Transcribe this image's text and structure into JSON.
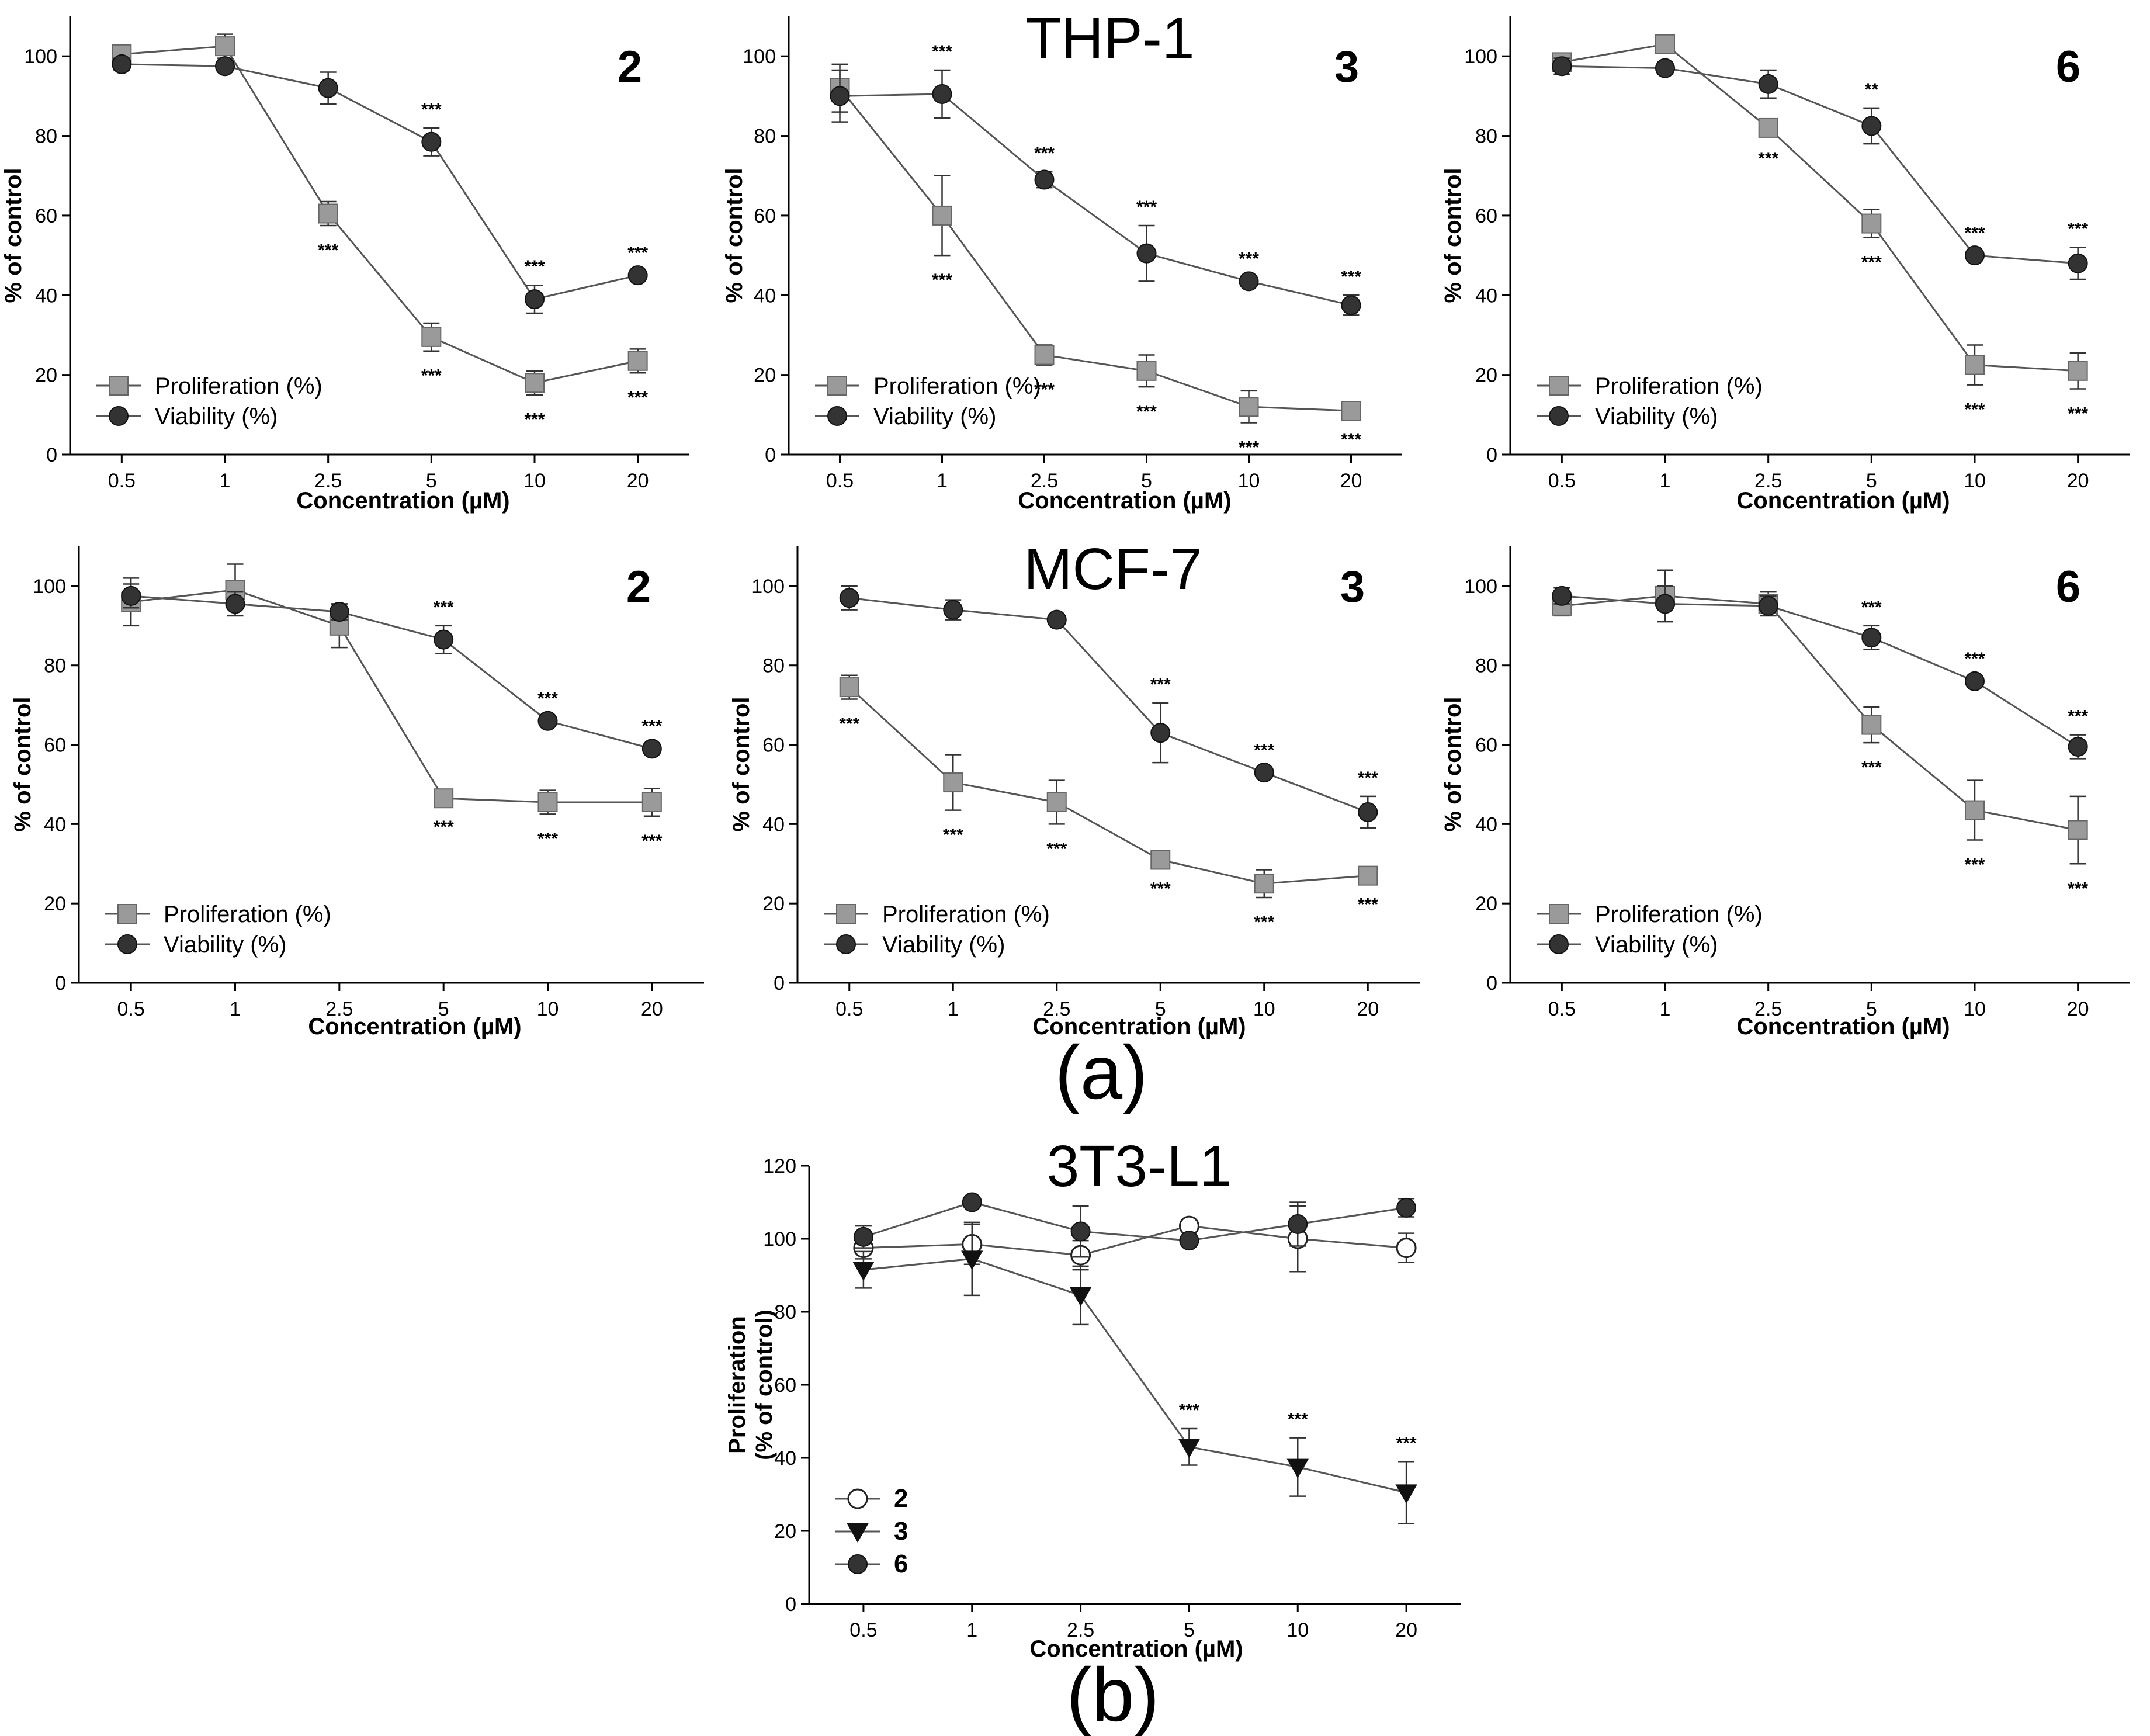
{
  "figure": {
    "cell_titles": [
      "THP-1",
      "MCF-7",
      "3T3-L1"
    ],
    "part_labels": [
      "(a)",
      "(b)"
    ]
  },
  "colors": {
    "proliferation_fill": "#9a9a9a",
    "viability_fill": "#333333",
    "line": "#555555",
    "axis": "#000000"
  },
  "chart_data": [
    {
      "id": "thp1-2",
      "cell_line": "THP-1",
      "compound": "2",
      "type": "line",
      "xlabel": "Concentration (µM)",
      "ylabel": "% of control",
      "categories": [
        "0.5",
        "1",
        "2.5",
        "5",
        "10",
        "20"
      ],
      "ylim": [
        0,
        110
      ],
      "yticks": [
        0,
        20,
        40,
        60,
        80,
        100
      ],
      "legend_position": "bottom-left",
      "series": [
        {
          "name": "Proliferation (%)",
          "marker": "square",
          "values": [
            100.5,
            102.5,
            60.5,
            29.5,
            18.0,
            23.5
          ],
          "errors": [
            1.5,
            3.0,
            3.0,
            3.5,
            3.0,
            3.0
          ],
          "significance": [
            "",
            "",
            "***",
            "***",
            "***",
            "***"
          ]
        },
        {
          "name": "Viability (%)",
          "marker": "circle",
          "values": [
            98.0,
            97.5,
            92.0,
            78.5,
            39.0,
            45.0
          ],
          "errors": [
            1.5,
            1.5,
            4.0,
            3.5,
            3.5,
            1.0
          ],
          "significance": [
            "",
            "",
            "",
            "***",
            "***",
            "***"
          ]
        }
      ]
    },
    {
      "id": "thp1-3",
      "cell_line": "THP-1",
      "compound": "3",
      "type": "line",
      "xlabel": "Concentration (µM)",
      "ylabel": "% of control",
      "categories": [
        "0.5",
        "1",
        "2.5",
        "5",
        "10",
        "20"
      ],
      "ylim": [
        0,
        110
      ],
      "yticks": [
        0,
        20,
        40,
        60,
        80,
        100
      ],
      "legend_position": "bottom-left",
      "series": [
        {
          "name": "Proliferation (%)",
          "marker": "square",
          "values": [
            92.0,
            60.0,
            25.0,
            21.0,
            12.0,
            11.0
          ],
          "errors": [
            6.0,
            10.0,
            2.5,
            4.0,
            4.0,
            1.0
          ],
          "significance": [
            "",
            "***",
            "***",
            "***",
            "***",
            "***"
          ]
        },
        {
          "name": "Viability (%)",
          "marker": "circle",
          "values": [
            90.0,
            90.5,
            69.0,
            50.5,
            43.5,
            37.5
          ],
          "errors": [
            6.5,
            6.0,
            2.0,
            7.0,
            1.0,
            2.5
          ],
          "significance": [
            "",
            "***",
            "***",
            "***",
            "***",
            "***"
          ]
        }
      ]
    },
    {
      "id": "thp1-6",
      "cell_line": "THP-1",
      "compound": "6",
      "type": "line",
      "xlabel": "Concentration (µM)",
      "ylabel": "% of control",
      "categories": [
        "0.5",
        "1",
        "2.5",
        "5",
        "10",
        "20"
      ],
      "ylim": [
        0,
        110
      ],
      "yticks": [
        0,
        20,
        40,
        60,
        80,
        100
      ],
      "legend_position": "bottom-left",
      "series": [
        {
          "name": "Proliferation (%)",
          "marker": "square",
          "values": [
            98.5,
            103.0,
            82.0,
            58.0,
            22.5,
            21.0
          ],
          "errors": [
            1.5,
            2.0,
            1.5,
            3.5,
            5.0,
            4.5
          ],
          "significance": [
            "",
            "",
            "***",
            "***",
            "***",
            "***"
          ]
        },
        {
          "name": "Viability (%)",
          "marker": "circle",
          "values": [
            97.5,
            97.0,
            93.0,
            82.5,
            50.0,
            48.0
          ],
          "errors": [
            2.0,
            1.5,
            3.5,
            4.5,
            1.0,
            4.0
          ],
          "significance": [
            "",
            "",
            "",
            "**",
            "***",
            "***"
          ]
        }
      ]
    },
    {
      "id": "mcf7-2",
      "cell_line": "MCF-7",
      "compound": "2",
      "type": "line",
      "xlabel": "Concentration (µM)",
      "ylabel": "% of control",
      "categories": [
        "0.5",
        "1",
        "2.5",
        "5",
        "10",
        "20"
      ],
      "ylim": [
        0,
        110
      ],
      "yticks": [
        0,
        20,
        40,
        60,
        80,
        100
      ],
      "legend_position": "bottom-left",
      "series": [
        {
          "name": "Proliferation (%)",
          "marker": "square",
          "values": [
            96.0,
            99.0,
            90.0,
            46.5,
            45.5,
            45.5
          ],
          "errors": [
            6.0,
            6.5,
            5.5,
            1.0,
            3.0,
            3.5
          ],
          "significance": [
            "",
            "",
            "",
            "***",
            "***",
            "***"
          ]
        },
        {
          "name": "Viability (%)",
          "marker": "circle",
          "values": [
            97.5,
            95.5,
            93.5,
            86.5,
            66.0,
            59.0
          ],
          "errors": [
            3.0,
            3.0,
            2.0,
            3.5,
            1.0,
            1.0
          ],
          "significance": [
            "",
            "",
            "",
            "***",
            "***",
            "***"
          ]
        }
      ]
    },
    {
      "id": "mcf7-3",
      "cell_line": "MCF-7",
      "compound": "3",
      "type": "line",
      "xlabel": "Concentration (µM)",
      "ylabel": "% of control",
      "categories": [
        "0.5",
        "1",
        "2.5",
        "5",
        "10",
        "20"
      ],
      "ylim": [
        0,
        110
      ],
      "yticks": [
        0,
        20,
        40,
        60,
        80,
        100
      ],
      "legend_position": "bottom-left",
      "series": [
        {
          "name": "Proliferation (%)",
          "marker": "square",
          "values": [
            74.5,
            50.5,
            45.5,
            31.0,
            25.0,
            27.0
          ],
          "errors": [
            3.0,
            7.0,
            5.5,
            1.0,
            3.5,
            1.0
          ],
          "significance": [
            "***",
            "***",
            "***",
            "***",
            "***",
            "***"
          ]
        },
        {
          "name": "Viability (%)",
          "marker": "circle",
          "values": [
            97.0,
            94.0,
            91.5,
            63.0,
            53.0,
            43.0
          ],
          "errors": [
            3.0,
            2.5,
            1.0,
            7.5,
            1.0,
            4.0
          ],
          "significance": [
            "",
            "",
            "",
            "***",
            "***",
            "***"
          ]
        }
      ]
    },
    {
      "id": "mcf7-6",
      "cell_line": "MCF-7",
      "compound": "6",
      "type": "line",
      "xlabel": "Concentration (µM)",
      "ylabel": "% of control",
      "categories": [
        "0.5",
        "1",
        "2.5",
        "5",
        "10",
        "20"
      ],
      "ylim": [
        0,
        110
      ],
      "yticks": [
        0,
        20,
        40,
        60,
        80,
        100
      ],
      "legend_position": "bottom-left",
      "series": [
        {
          "name": "Proliferation (%)",
          "marker": "square",
          "values": [
            95.0,
            97.5,
            95.5,
            65.0,
            43.5,
            38.5
          ],
          "errors": [
            2.5,
            6.5,
            3.0,
            4.5,
            7.5,
            8.5
          ],
          "significance": [
            "",
            "",
            "",
            "***",
            "***",
            "***"
          ]
        },
        {
          "name": "Viability (%)",
          "marker": "circle",
          "values": [
            97.5,
            95.5,
            95.0,
            87.0,
            76.0,
            59.5
          ],
          "errors": [
            2.0,
            4.5,
            2.5,
            3.0,
            1.0,
            3.0
          ],
          "significance": [
            "",
            "",
            "",
            "***",
            "***",
            "***"
          ]
        }
      ]
    },
    {
      "id": "3t3l1",
      "cell_line": "3T3-L1",
      "type": "line",
      "xlabel": "Concentration (µM)",
      "ylabel": "Proliferation (% of control)",
      "ylabel_lines": [
        "Proliferation",
        "(% of control)"
      ],
      "categories": [
        "0.5",
        "1",
        "2.5",
        "5",
        "10",
        "20"
      ],
      "ylim": [
        0,
        120
      ],
      "yticks": [
        0,
        20,
        40,
        60,
        80,
        100,
        120
      ],
      "legend_position": "bottom-left",
      "series": [
        {
          "name": "2",
          "marker": "open-circle",
          "values": [
            97.5,
            98.5,
            95.5,
            103.5,
            100.0,
            97.5
          ],
          "errors": [
            3.0,
            5.5,
            4.0,
            1.5,
            9.0,
            4.0
          ],
          "significance": [
            "",
            "",
            "",
            "",
            "",
            ""
          ]
        },
        {
          "name": "3",
          "marker": "triangle-down",
          "values": [
            91.5,
            94.5,
            84.5,
            43.0,
            37.5,
            30.5
          ],
          "errors": [
            5.0,
            10.0,
            8.0,
            5.0,
            8.0,
            8.5
          ],
          "significance": [
            "",
            "",
            "",
            "***",
            "***",
            "***"
          ]
        },
        {
          "name": "6",
          "marker": "circle",
          "values": [
            100.5,
            110.0,
            102.0,
            99.5,
            104.0,
            108.5
          ],
          "errors": [
            3.0,
            1.0,
            7.0,
            1.0,
            6.0,
            2.5
          ],
          "significance": [
            "",
            "",
            "",
            "",
            "",
            ""
          ]
        }
      ]
    }
  ]
}
